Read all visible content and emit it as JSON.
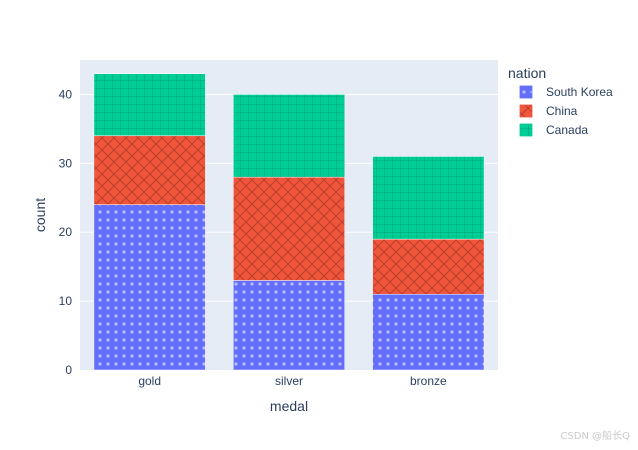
{
  "chart_data": {
    "type": "bar",
    "barmode": "stack",
    "categories": [
      "gold",
      "silver",
      "bronze"
    ],
    "series": [
      {
        "name": "South Korea",
        "values": [
          24,
          13,
          11
        ],
        "color": "#636efa",
        "pattern": "dots"
      },
      {
        "name": "China",
        "values": [
          10,
          15,
          8
        ],
        "color": "#ef553b",
        "pattern": "crosshatch"
      },
      {
        "name": "Canada",
        "values": [
          9,
          12,
          12
        ],
        "color": "#00cc96",
        "pattern": "grid"
      }
    ],
    "xlabel": "medal",
    "ylabel": "count",
    "ylim": [
      0,
      45
    ],
    "yticks": [
      0,
      10,
      20,
      30,
      40
    ],
    "grid": true,
    "legend_title": "nation",
    "legend_position": "top-right",
    "plot_bg": "#e5ecf6"
  },
  "watermark": "CSDN @船长Q"
}
